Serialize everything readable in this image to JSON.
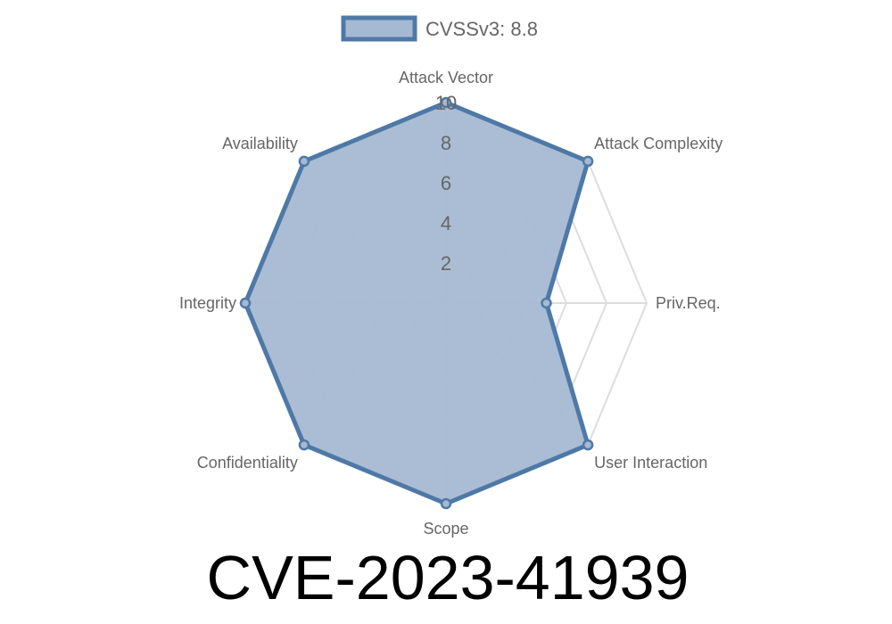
{
  "chart_data": {
    "type": "radar",
    "title": "CVE-2023-41939",
    "legend": {
      "label": "CVSSv3: 8.8",
      "position": "top"
    },
    "axes": [
      "Attack Vector",
      "Attack Complexity",
      "Priv.Req.",
      "User Interaction",
      "Scope",
      "Confidentiality",
      "Integrity",
      "Availability"
    ],
    "series": [
      {
        "name": "CVSSv3: 8.8",
        "values": [
          10,
          10,
          5,
          10,
          10,
          10,
          10,
          10
        ]
      }
    ],
    "rlim": [
      0,
      10
    ],
    "ticks": [
      "2",
      "4",
      "6",
      "8",
      "10"
    ],
    "grid": true,
    "colors": {
      "stroke": "#4e79a7",
      "fill": "#a5b9d2",
      "grid": "#dddddd",
      "text": "#666666"
    }
  }
}
